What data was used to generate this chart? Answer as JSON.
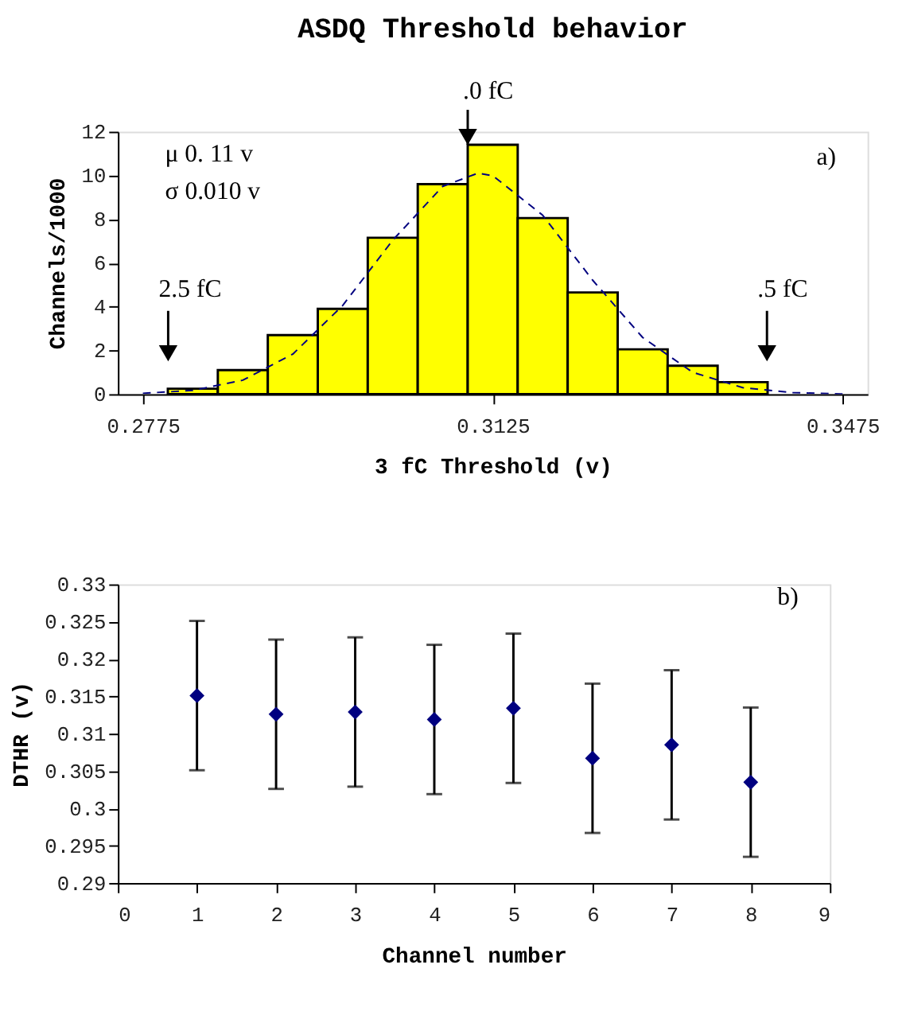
{
  "chart_data": [
    {
      "type": "histogram",
      "title": "ASDQ Threshold behavior",
      "xlabel": "3 fC Threshold (v)",
      "ylabel": "Channels/1000",
      "bins": [
        0.28,
        0.285,
        0.29,
        0.295,
        0.3,
        0.305,
        0.31,
        0.315,
        0.32,
        0.325,
        0.33,
        0.335,
        0.34
      ],
      "values": [
        0.25,
        1.1,
        2.7,
        3.9,
        7.15,
        9.6,
        11.4,
        8.05,
        4.65,
        2.05,
        1.3,
        0.55
      ],
      "color": "#ffff00",
      "series": [
        {
          "type": "line",
          "color": "#000080",
          "line_style": "dashed",
          "x": [
            0.2775,
            0.2825,
            0.2875,
            0.2925,
            0.2975,
            0.3025,
            0.3075,
            0.311,
            0.3125,
            0.3175,
            0.3225,
            0.3275,
            0.3325,
            0.3375,
            0.3425,
            0.3475
          ],
          "values": [
            0.04,
            0.17,
            0.64,
            1.83,
            4.06,
            7.04,
            9.5,
            10.1,
            9.99,
            8.18,
            5.21,
            2.59,
            1.0,
            0.3,
            0.07,
            0.01
          ]
        }
      ],
      "xlim": [
        0.275,
        0.35
      ],
      "xticks": [
        0.2775,
        0.3125,
        0.3475
      ],
      "ylim": [
        0,
        12
      ],
      "yticks": [
        0,
        2,
        4,
        6,
        8,
        10,
        12
      ],
      "grid": false,
      "annotations": [
        {
          "text": ".0 fC",
          "x": 0.31,
          "y": 11.4
        },
        "2.5 fC",
        ".5  fC",
        "μ  0. 11 v",
        "σ  0.010 v",
        "a)"
      ]
    },
    {
      "type": "scatter",
      "xlabel": "Channel number",
      "ylabel": "DTHR (v)",
      "x": [
        1,
        2,
        3,
        4,
        5,
        6,
        7,
        8
      ],
      "values": [
        0.3151,
        0.3126,
        0.3129,
        0.3119,
        0.3134,
        0.3067,
        0.3085,
        0.3035
      ],
      "errors": [
        0.01,
        0.01,
        0.01,
        0.01,
        0.01,
        0.01,
        0.01,
        0.01
      ],
      "color": "#000080",
      "marker": "diamond",
      "xlim": [
        0,
        9
      ],
      "xticks": [
        0,
        1,
        2,
        3,
        4,
        5,
        6,
        7,
        8,
        9
      ],
      "ylim": [
        0.29,
        0.33
      ],
      "yticks": [
        0.29,
        0.295,
        0.3,
        0.305,
        0.31,
        0.315,
        0.32,
        0.325,
        0.33
      ],
      "grid": false,
      "annotations": [
        "b)"
      ]
    }
  ]
}
